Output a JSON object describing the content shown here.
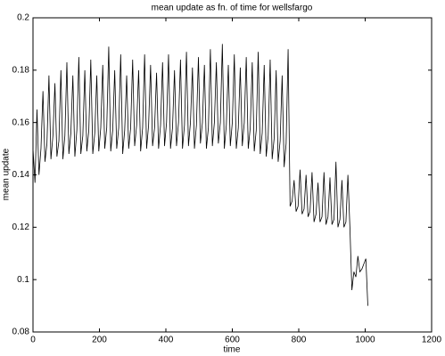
{
  "chart_data": {
    "type": "line",
    "title": "mean update as fn. of time for wellsfargo",
    "xlabel": "time",
    "ylabel": "mean update",
    "xlim": [
      0,
      1200
    ],
    "ylim": [
      0.08,
      0.2
    ],
    "xticks": [
      0,
      200,
      400,
      600,
      800,
      1000,
      1200
    ],
    "yticks": [
      0.08,
      0.1,
      0.12,
      0.14,
      0.16,
      0.18,
      0.2
    ],
    "grid": false,
    "series": [
      {
        "color": "#000000",
        "x": [
          0,
          6,
          12,
          18,
          24,
          30,
          36,
          42,
          48,
          54,
          60,
          66,
          72,
          78,
          84,
          90,
          96,
          102,
          108,
          114,
          120,
          126,
          132,
          138,
          144,
          150,
          156,
          162,
          168,
          174,
          180,
          186,
          192,
          198,
          204,
          210,
          216,
          222,
          228,
          234,
          240,
          246,
          252,
          258,
          264,
          270,
          276,
          282,
          288,
          294,
          300,
          306,
          312,
          318,
          324,
          330,
          336,
          342,
          348,
          354,
          360,
          366,
          372,
          378,
          384,
          390,
          396,
          402,
          408,
          414,
          420,
          426,
          432,
          438,
          444,
          450,
          456,
          462,
          468,
          474,
          480,
          486,
          492,
          498,
          504,
          510,
          516,
          522,
          528,
          534,
          540,
          546,
          552,
          558,
          564,
          570,
          576,
          582,
          588,
          594,
          600,
          606,
          612,
          618,
          624,
          630,
          636,
          642,
          648,
          654,
          660,
          666,
          672,
          678,
          684,
          690,
          696,
          702,
          708,
          714,
          720,
          726,
          732,
          738,
          744,
          750,
          756,
          762,
          768,
          774,
          780,
          786,
          792,
          798,
          804,
          810,
          816,
          822,
          828,
          834,
          840,
          846,
          852,
          858,
          864,
          870,
          876,
          882,
          888,
          894,
          900,
          906,
          912,
          918,
          924,
          930,
          936,
          942,
          948,
          954,
          960,
          966,
          972,
          978,
          984,
          990,
          996,
          1002,
          1008
        ],
        "values": [
          0.15,
          0.137,
          0.165,
          0.14,
          0.15,
          0.172,
          0.145,
          0.152,
          0.178,
          0.146,
          0.155,
          0.175,
          0.147,
          0.153,
          0.18,
          0.146,
          0.155,
          0.183,
          0.148,
          0.156,
          0.178,
          0.147,
          0.157,
          0.185,
          0.148,
          0.155,
          0.18,
          0.149,
          0.157,
          0.184,
          0.148,
          0.156,
          0.178,
          0.149,
          0.158,
          0.182,
          0.15,
          0.158,
          0.189,
          0.149,
          0.157,
          0.18,
          0.15,
          0.158,
          0.186,
          0.148,
          0.157,
          0.178,
          0.15,
          0.158,
          0.184,
          0.151,
          0.159,
          0.18,
          0.149,
          0.158,
          0.186,
          0.15,
          0.159,
          0.182,
          0.151,
          0.158,
          0.179,
          0.15,
          0.159,
          0.183,
          0.151,
          0.16,
          0.186,
          0.15,
          0.158,
          0.18,
          0.151,
          0.16,
          0.184,
          0.15,
          0.159,
          0.187,
          0.151,
          0.16,
          0.181,
          0.15,
          0.159,
          0.185,
          0.152,
          0.16,
          0.182,
          0.15,
          0.158,
          0.188,
          0.151,
          0.16,
          0.183,
          0.152,
          0.16,
          0.19,
          0.15,
          0.159,
          0.182,
          0.151,
          0.16,
          0.186,
          0.15,
          0.158,
          0.181,
          0.151,
          0.16,
          0.185,
          0.15,
          0.158,
          0.183,
          0.149,
          0.157,
          0.187,
          0.148,
          0.156,
          0.182,
          0.147,
          0.155,
          0.184,
          0.146,
          0.154,
          0.18,
          0.145,
          0.153,
          0.178,
          0.143,
          0.152,
          0.188,
          0.128,
          0.13,
          0.138,
          0.126,
          0.128,
          0.142,
          0.125,
          0.127,
          0.14,
          0.124,
          0.126,
          0.141,
          0.122,
          0.125,
          0.137,
          0.122,
          0.124,
          0.141,
          0.121,
          0.124,
          0.139,
          0.121,
          0.123,
          0.145,
          0.12,
          0.123,
          0.138,
          0.12,
          0.122,
          0.14,
          0.12,
          0.096,
          0.103,
          0.101,
          0.109,
          0.103,
          0.104,
          0.106,
          0.108,
          0.09
        ]
      }
    ]
  }
}
